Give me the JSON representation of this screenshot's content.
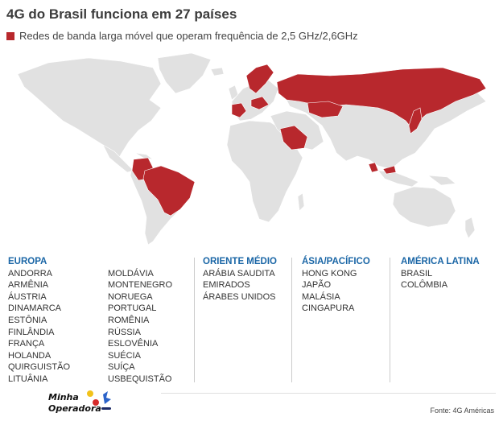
{
  "title": "4G do Brasil funciona em 27 países",
  "legend": {
    "label": "Redes de banda larga móvel que operam frequência de 2,5 GHz/2,6GHz",
    "color": "#b8282d"
  },
  "map": {
    "land_color": "#e1e1e1",
    "highlight_color": "#b8282d",
    "highlighted_countries": [
      "Brasil",
      "Colômbia",
      "Rússia",
      "Arábia Saudita",
      "Japão",
      "Malásia",
      "Hong Kong",
      "Cingapura"
    ]
  },
  "regions": {
    "europa": {
      "name": "EUROPA",
      "countries_col1": [
        "ANDORRA",
        "ARMÊNIA",
        "ÁUSTRIA",
        "DINAMARCA",
        "ESTÔNIA",
        "FINLÂNDIA",
        "FRANÇA",
        "HOLANDA",
        "QUIRGUISTÃO",
        "LITUÂNIA"
      ],
      "countries_col2": [
        "MOLDÁVIA",
        "MONTENEGRO",
        "NORUEGA",
        "PORTUGAL",
        "ROMÊNIA",
        "RÚSSIA",
        "ESLOVÊNIA",
        "SUÉCIA",
        "SUÍÇA",
        "USBEQUISTÃO"
      ]
    },
    "oriente_medio": {
      "name": "ORIENTE MÉDIO",
      "countries": [
        "ARÁBIA SAUDITA",
        "EMIRADOS",
        "ÁRABES UNIDOS"
      ]
    },
    "asia_pacifico": {
      "name": "ÁSIA/PACÍFICO",
      "countries": [
        "HONG KONG",
        "JAPÃO",
        "MALÁSIA",
        "CINGAPURA"
      ]
    },
    "america_latina": {
      "name": "AMÉRICA LATINA",
      "countries": [
        "BRASIL",
        "COLÔMBIA"
      ]
    }
  },
  "footer": {
    "logo_line1": "Minha",
    "logo_line2": "Operadora",
    "source": "Fonte: 4G Américas"
  }
}
